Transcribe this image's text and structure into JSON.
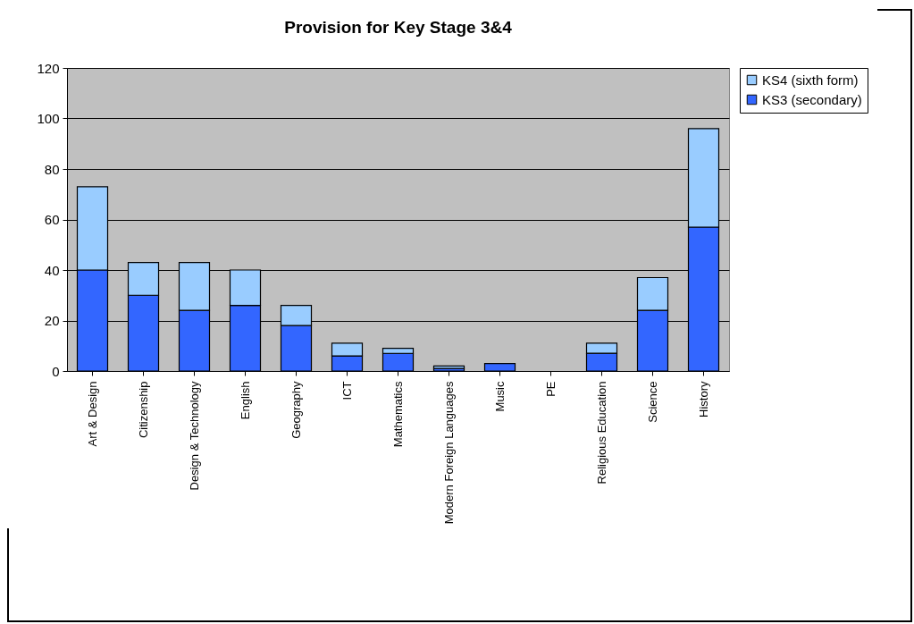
{
  "chart_data": {
    "type": "bar",
    "title": "Provision for Key Stage 3&4",
    "categories": [
      "Art & Design",
      "Citizenship",
      "Design & Technology",
      "English",
      "Geography",
      "ICT",
      "Mathematics",
      "Modern Foreign Languages",
      "Music",
      "PE",
      "Religious Education",
      "Science",
      "History"
    ],
    "series": [
      {
        "name": "KS3 (secondary)",
        "color": "#3366ff",
        "values": [
          40,
          30,
          24,
          26,
          18,
          6,
          7,
          1,
          3,
          0,
          7,
          24,
          57
        ]
      },
      {
        "name": "KS4 (sixth form)",
        "color": "#99ccff",
        "values": [
          33,
          13,
          19,
          14,
          8,
          5,
          2,
          1,
          0,
          0,
          4,
          13,
          39
        ]
      }
    ],
    "stacked": true,
    "ylim": [
      0,
      120
    ],
    "yticks": [
      0,
      20,
      40,
      60,
      80,
      100,
      120
    ],
    "grid": "y",
    "legend": "right"
  }
}
